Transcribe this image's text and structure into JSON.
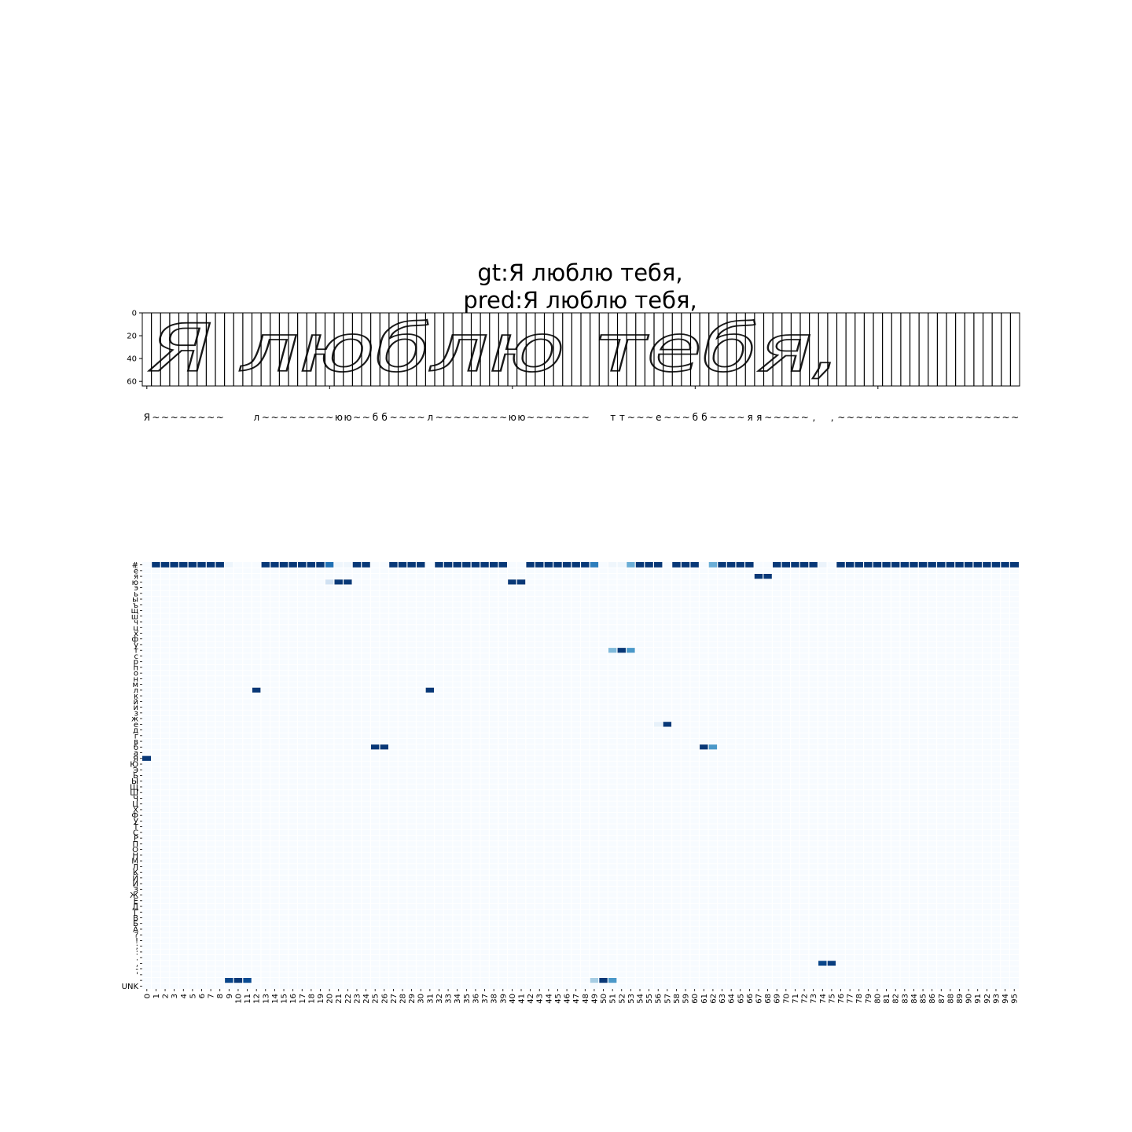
{
  "chart_data": [
    {
      "type": "image",
      "title_lines": [
        "gt:Я люблю тебя,",
        "pred:Я люблю тебя,"
      ],
      "image_text": "Я люблю тебя,",
      "y_ticks": [
        0,
        20,
        40,
        60
      ],
      "ylim": [
        0,
        64
      ],
      "column_count": 96,
      "column_labels": [
        "Я",
        "~",
        "~",
        "~",
        "~",
        "~",
        "~",
        "~",
        "~",
        "",
        "",
        "",
        "л",
        "~",
        "~",
        "~",
        "~",
        "~",
        "~",
        "~",
        "~",
        "ю",
        "ю",
        "~",
        "~",
        "б",
        "б",
        "~",
        "~",
        "~",
        "~",
        "л",
        "~",
        "~",
        "~",
        "~",
        "~",
        "~",
        "~",
        "~",
        "ю",
        "ю",
        "~",
        "~",
        "~",
        "~",
        "~",
        "~",
        "~",
        "",
        "",
        "т",
        "т",
        "~",
        "~",
        "~",
        "е",
        "~",
        "~",
        "~",
        "б",
        "б",
        "~",
        "~",
        "~",
        "~",
        "я",
        "я",
        "~",
        "~",
        "~",
        "~",
        "~",
        ",",
        "",
        ",",
        "~",
        "~",
        "~",
        "~",
        "~",
        "~",
        "~",
        "~",
        "~",
        "~",
        "~",
        "~",
        "~",
        "~",
        "~",
        "~",
        "~",
        "~",
        "~",
        "~"
      ]
    },
    {
      "type": "heatmap",
      "colormap": "Blues",
      "x": [
        0,
        1,
        2,
        3,
        4,
        5,
        6,
        7,
        8,
        9,
        10,
        11,
        12,
        13,
        14,
        15,
        16,
        17,
        18,
        19,
        20,
        21,
        22,
        23,
        24,
        25,
        26,
        27,
        28,
        29,
        30,
        31,
        32,
        33,
        34,
        35,
        36,
        37,
        38,
        39,
        40,
        41,
        42,
        43,
        44,
        45,
        46,
        47,
        48,
        49,
        50,
        51,
        52,
        53,
        54,
        55,
        56,
        57,
        58,
        59,
        60,
        61,
        62,
        63,
        64,
        65,
        66,
        67,
        68,
        69,
        70,
        71,
        72,
        73,
        74,
        75,
        76,
        77,
        78,
        79,
        80,
        81,
        82,
        83,
        84,
        85,
        86,
        87,
        88,
        89,
        90,
        91,
        92,
        93,
        94,
        95
      ],
      "y": [
        "#",
        "ё",
        "я",
        "ю",
        "э",
        "ь",
        "ы",
        "ъ",
        "щ",
        "ш",
        "ч",
        "ц",
        "х",
        "ф",
        "у",
        "т",
        "с",
        "р",
        "п",
        "о",
        "н",
        "м",
        "л",
        "к",
        "й",
        "и",
        "з",
        "ж",
        "е",
        "д",
        "г",
        "в",
        "б",
        "а",
        "Я",
        "Ю",
        "Э",
        "Ь",
        "Ы",
        "Щ",
        "Ш",
        "Ч",
        "Ц",
        "Х",
        "Ф",
        "У",
        "Т",
        "С",
        "Р",
        "П",
        "О",
        "Н",
        "М",
        "Л",
        "К",
        "Й",
        "И",
        "З",
        "Ж",
        "Е",
        "Д",
        "Г",
        "В",
        "Б",
        "А",
        "?",
        "!",
        ";",
        ":",
        ".",
        ",",
        "-",
        "'",
        " ",
        "UNK"
      ],
      "cells": [
        {
          "row": "#",
          "col": 1,
          "value": 0.97
        },
        {
          "row": "#",
          "col": 2,
          "value": 0.97
        },
        {
          "row": "#",
          "col": 3,
          "value": 0.97
        },
        {
          "row": "#",
          "col": 4,
          "value": 0.97
        },
        {
          "row": "#",
          "col": 5,
          "value": 0.97
        },
        {
          "row": "#",
          "col": 6,
          "value": 0.97
        },
        {
          "row": "#",
          "col": 7,
          "value": 0.97
        },
        {
          "row": "#",
          "col": 8,
          "value": 0.97
        },
        {
          "row": "#",
          "col": 9,
          "value": 0.05
        },
        {
          "row": "#",
          "col": 13,
          "value": 0.97
        },
        {
          "row": "#",
          "col": 14,
          "value": 0.97
        },
        {
          "row": "#",
          "col": 15,
          "value": 0.97
        },
        {
          "row": "#",
          "col": 16,
          "value": 0.97
        },
        {
          "row": "#",
          "col": 17,
          "value": 0.97
        },
        {
          "row": "#",
          "col": 18,
          "value": 0.97
        },
        {
          "row": "#",
          "col": 19,
          "value": 0.97
        },
        {
          "row": "#",
          "col": 20,
          "value": 0.75
        },
        {
          "row": "#",
          "col": 21,
          "value": 0.04
        },
        {
          "row": "#",
          "col": 22,
          "value": 0.04
        },
        {
          "row": "#",
          "col": 23,
          "value": 0.97
        },
        {
          "row": "#",
          "col": 24,
          "value": 0.97
        },
        {
          "row": "#",
          "col": 27,
          "value": 0.97
        },
        {
          "row": "#",
          "col": 28,
          "value": 0.97
        },
        {
          "row": "#",
          "col": 29,
          "value": 0.97
        },
        {
          "row": "#",
          "col": 30,
          "value": 0.97
        },
        {
          "row": "#",
          "col": 32,
          "value": 0.97
        },
        {
          "row": "#",
          "col": 33,
          "value": 0.97
        },
        {
          "row": "#",
          "col": 34,
          "value": 0.97
        },
        {
          "row": "#",
          "col": 35,
          "value": 0.97
        },
        {
          "row": "#",
          "col": 36,
          "value": 0.97
        },
        {
          "row": "#",
          "col": 37,
          "value": 0.97
        },
        {
          "row": "#",
          "col": 38,
          "value": 0.97
        },
        {
          "row": "#",
          "col": 39,
          "value": 0.97
        },
        {
          "row": "#",
          "col": 42,
          "value": 0.97
        },
        {
          "row": "#",
          "col": 43,
          "value": 0.97
        },
        {
          "row": "#",
          "col": 44,
          "value": 0.97
        },
        {
          "row": "#",
          "col": 45,
          "value": 0.97
        },
        {
          "row": "#",
          "col": 46,
          "value": 0.97
        },
        {
          "row": "#",
          "col": 47,
          "value": 0.97
        },
        {
          "row": "#",
          "col": 48,
          "value": 0.97
        },
        {
          "row": "#",
          "col": 49,
          "value": 0.7
        },
        {
          "row": "#",
          "col": 51,
          "value": 0.04
        },
        {
          "row": "#",
          "col": 52,
          "value": 0.04
        },
        {
          "row": "#",
          "col": 53,
          "value": 0.5
        },
        {
          "row": "#",
          "col": 54,
          "value": 0.97
        },
        {
          "row": "#",
          "col": 55,
          "value": 0.97
        },
        {
          "row": "#",
          "col": 56,
          "value": 0.97
        },
        {
          "row": "#",
          "col": 58,
          "value": 0.97
        },
        {
          "row": "#",
          "col": 59,
          "value": 0.97
        },
        {
          "row": "#",
          "col": 60,
          "value": 0.97
        },
        {
          "row": "#",
          "col": 62,
          "value": 0.5
        },
        {
          "row": "#",
          "col": 63,
          "value": 0.97
        },
        {
          "row": "#",
          "col": 64,
          "value": 0.97
        },
        {
          "row": "#",
          "col": 65,
          "value": 0.97
        },
        {
          "row": "#",
          "col": 66,
          "value": 0.97
        },
        {
          "row": "#",
          "col": 69,
          "value": 0.97
        },
        {
          "row": "#",
          "col": 70,
          "value": 0.97
        },
        {
          "row": "#",
          "col": 71,
          "value": 0.97
        },
        {
          "row": "#",
          "col": 72,
          "value": 0.97
        },
        {
          "row": "#",
          "col": 73,
          "value": 0.97
        },
        {
          "row": "#",
          "col": 74,
          "value": 0.06
        },
        {
          "row": "#",
          "col": 76,
          "value": 0.97
        },
        {
          "row": "#",
          "col": 77,
          "value": 0.97
        },
        {
          "row": "#",
          "col": 78,
          "value": 0.97
        },
        {
          "row": "#",
          "col": 79,
          "value": 0.97
        },
        {
          "row": "#",
          "col": 80,
          "value": 0.97
        },
        {
          "row": "#",
          "col": 81,
          "value": 0.97
        },
        {
          "row": "#",
          "col": 82,
          "value": 0.97
        },
        {
          "row": "#",
          "col": 83,
          "value": 0.97
        },
        {
          "row": "#",
          "col": 84,
          "value": 0.97
        },
        {
          "row": "#",
          "col": 85,
          "value": 0.97
        },
        {
          "row": "#",
          "col": 86,
          "value": 0.97
        },
        {
          "row": "#",
          "col": 87,
          "value": 0.97
        },
        {
          "row": "#",
          "col": 88,
          "value": 0.97
        },
        {
          "row": "#",
          "col": 89,
          "value": 0.97
        },
        {
          "row": "#",
          "col": 90,
          "value": 0.97
        },
        {
          "row": "#",
          "col": 91,
          "value": 0.97
        },
        {
          "row": "#",
          "col": 92,
          "value": 0.97
        },
        {
          "row": "#",
          "col": 93,
          "value": 0.97
        },
        {
          "row": "#",
          "col": 94,
          "value": 0.97
        },
        {
          "row": "#",
          "col": 95,
          "value": 0.97
        },
        {
          "row": "я",
          "col": 67,
          "value": 0.97
        },
        {
          "row": "я",
          "col": 68,
          "value": 0.97
        },
        {
          "row": "ю",
          "col": 20,
          "value": 0.2
        },
        {
          "row": "ю",
          "col": 21,
          "value": 0.97
        },
        {
          "row": "ю",
          "col": 22,
          "value": 0.97
        },
        {
          "row": "ю",
          "col": 40,
          "value": 0.97
        },
        {
          "row": "ю",
          "col": 41,
          "value": 0.97
        },
        {
          "row": "т",
          "col": 51,
          "value": 0.45
        },
        {
          "row": "т",
          "col": 52,
          "value": 0.97
        },
        {
          "row": "т",
          "col": 53,
          "value": 0.6
        },
        {
          "row": "л",
          "col": 12,
          "value": 0.97
        },
        {
          "row": "л",
          "col": 31,
          "value": 0.97
        },
        {
          "row": "е",
          "col": 56,
          "value": 0.08
        },
        {
          "row": "е",
          "col": 57,
          "value": 0.97
        },
        {
          "row": "б",
          "col": 25,
          "value": 0.97
        },
        {
          "row": "б",
          "col": 26,
          "value": 0.97
        },
        {
          "row": "б",
          "col": 61,
          "value": 0.97
        },
        {
          "row": "б",
          "col": 62,
          "value": 0.6
        },
        {
          "row": "Я",
          "col": 0,
          "value": 0.97
        },
        {
          "row": ",",
          "col": 74,
          "value": 0.92
        },
        {
          "row": ",",
          "col": 75,
          "value": 0.95
        },
        {
          "row": " ",
          "col": 9,
          "value": 0.92
        },
        {
          "row": " ",
          "col": 10,
          "value": 0.97
        },
        {
          "row": " ",
          "col": 11,
          "value": 0.9
        },
        {
          "row": " ",
          "col": 49,
          "value": 0.35
        },
        {
          "row": " ",
          "col": 50,
          "value": 0.97
        },
        {
          "row": " ",
          "col": 51,
          "value": 0.6
        }
      ]
    }
  ]
}
